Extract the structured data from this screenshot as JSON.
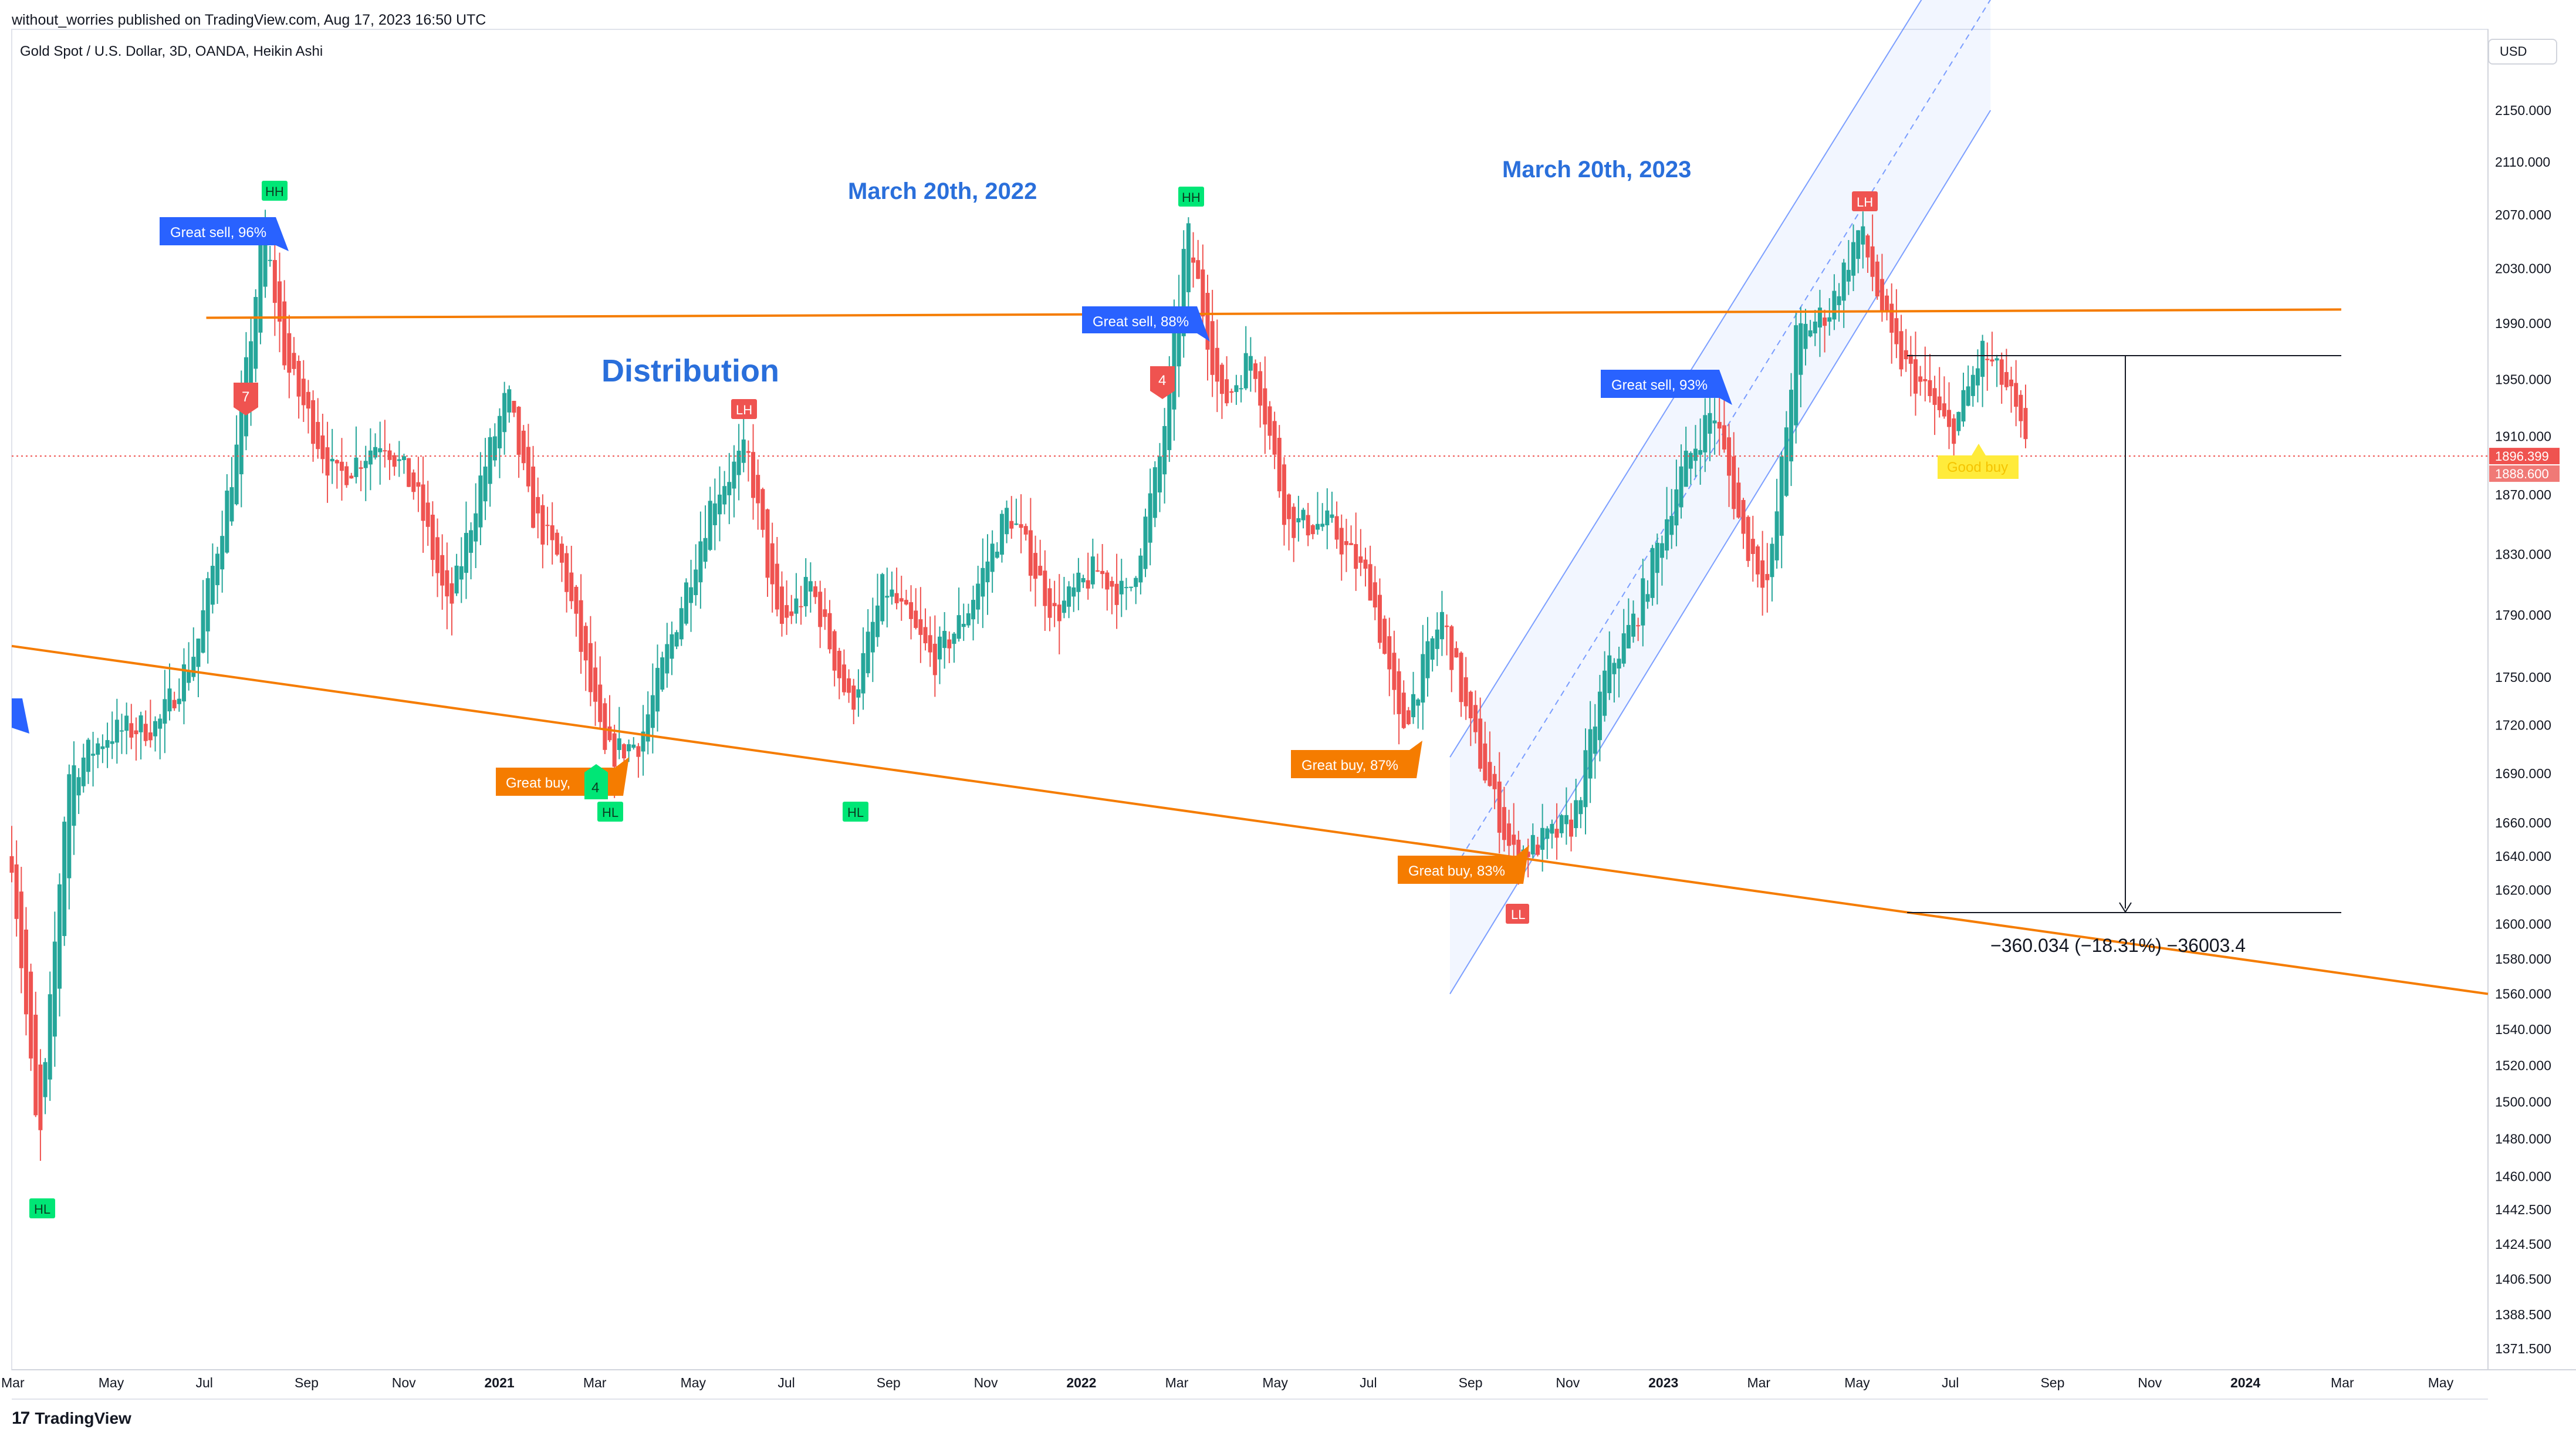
{
  "header": {
    "published": "without_worries published on TradingView.com, Aug 17, 2023 16:50 UTC",
    "symbol": "Gold Spot / U.S. Dollar, 3D, OANDA, Heikin Ashi"
  },
  "price_scale": {
    "currency": "USD",
    "ticks": [
      "2150.000",
      "2110.000",
      "2070.000",
      "2030.000",
      "1990.000",
      "1950.000",
      "1910.000",
      "1870.000",
      "1830.000",
      "1790.000",
      "1750.000",
      "1720.000",
      "1690.000",
      "1660.000",
      "1640.000",
      "1620.000",
      "1600.000",
      "1580.000",
      "1560.000",
      "1540.000",
      "1520.000",
      "1500.000",
      "1480.000",
      "1460.000",
      "1442.500",
      "1424.500",
      "1406.500",
      "1388.500",
      "1371.500"
    ],
    "last_price": "1896.399",
    "prev_price": "1888.600"
  },
  "time_axis": [
    "Mar",
    "May",
    "Jul",
    "Sep",
    "Nov",
    "2021",
    "Mar",
    "May",
    "Jul",
    "Sep",
    "Nov",
    "2022",
    "Mar",
    "May",
    "Jul",
    "Sep",
    "Nov",
    "2023",
    "Mar",
    "May",
    "Jul",
    "Sep",
    "Nov",
    "2024",
    "Mar",
    "May"
  ],
  "annotations": {
    "distribution": "Distribution",
    "march2022": "March 20th, 2022",
    "march2023": "March 20th, 2023",
    "measure": "−360.034 (−18.31%) −36003.4"
  },
  "signals": {
    "great_sell_96": "Great sell, 96%",
    "great_sell_88": "Great sell, 88%",
    "great_sell_93": "Great sell, 93%",
    "great_buy_a": "Great buy, ",
    "great_buy_87": "Great buy,  87%",
    "great_buy_83": "Great buy,  83%",
    "good_buy": "Good buy",
    "hh": "HH",
    "lh": "LH",
    "hl": "HL",
    "ll": "LL",
    "n7": "7",
    "n4": "4"
  },
  "footer": {
    "brand": "TradingView",
    "logo": "17"
  },
  "colors": {
    "bull": "#26a69a",
    "bear": "#ef5350",
    "orange": "#f57c00",
    "channel": "#2962ff",
    "sell_bg": "#2962ff",
    "buy_bg": "#f57c00",
    "good_buy_bg": "#ffeb3b",
    "hh_bg": "#00e676",
    "lh_bg": "#ef5350"
  },
  "chart_data": {
    "type": "candlestick",
    "title": "Gold Spot / U.S. Dollar, 3D, OANDA, Heikin Ashi",
    "ylim": [
      1360,
      2170
    ],
    "y_scale": "log",
    "x_range": [
      "2020-03",
      "2024-06"
    ],
    "close_path": [
      [
        "2020-03-01",
        1640
      ],
      [
        "2020-03-18",
        1470
      ],
      [
        "2020-04-05",
        1690
      ],
      [
        "2020-05-01",
        1715
      ],
      [
        "2020-06-01",
        1720
      ],
      [
        "2020-06-25",
        1770
      ],
      [
        "2020-07-20",
        1900
      ],
      [
        "2020-08-06",
        2060
      ],
      [
        "2020-08-20",
        1960
      ],
      [
        "2020-09-20",
        1880
      ],
      [
        "2020-10-20",
        1910
      ],
      [
        "2020-11-10",
        1870
      ],
      [
        "2020-11-30",
        1790
      ],
      [
        "2020-12-20",
        1880
      ],
      [
        "2021-01-06",
        1940
      ],
      [
        "2021-01-20",
        1860
      ],
      [
        "2021-02-10",
        1820
      ],
      [
        "2021-03-08",
        1700
      ],
      [
        "2021-03-30",
        1710
      ],
      [
        "2021-04-20",
        1780
      ],
      [
        "2021-05-15",
        1870
      ],
      [
        "2021-06-05",
        1900
      ],
      [
        "2021-06-25",
        1780
      ],
      [
        "2021-07-15",
        1810
      ],
      [
        "2021-08-09",
        1730
      ],
      [
        "2021-08-30",
        1810
      ],
      [
        "2021-09-30",
        1760
      ],
      [
        "2021-10-20",
        1790
      ],
      [
        "2021-11-16",
        1860
      ],
      [
        "2021-12-15",
        1790
      ],
      [
        "2022-01-10",
        1820
      ],
      [
        "2022-01-30",
        1800
      ],
      [
        "2022-02-20",
        1900
      ],
      [
        "2022-03-08",
        2060
      ],
      [
        "2022-03-30",
        1930
      ],
      [
        "2022-04-18",
        1970
      ],
      [
        "2022-05-10",
        1850
      ],
      [
        "2022-06-05",
        1850
      ],
      [
        "2022-07-01",
        1810
      ],
      [
        "2022-07-20",
        1715
      ],
      [
        "2022-08-15",
        1790
      ],
      [
        "2022-09-01",
        1720
      ],
      [
        "2022-09-28",
        1640
      ],
      [
        "2022-10-20",
        1650
      ],
      [
        "2022-11-05",
        1660
      ],
      [
        "2022-11-25",
        1750
      ],
      [
        "2022-12-15",
        1790
      ],
      [
        "2023-01-10",
        1880
      ],
      [
        "2023-02-01",
        1930
      ],
      [
        "2023-02-20",
        1840
      ],
      [
        "2023-03-08",
        1810
      ],
      [
        "2023-03-25",
        1980
      ],
      [
        "2023-04-15",
        2000
      ],
      [
        "2023-05-04",
        2060
      ],
      [
        "2023-05-25",
        1970
      ],
      [
        "2023-06-15",
        1940
      ],
      [
        "2023-06-30",
        1910
      ],
      [
        "2023-07-20",
        1970
      ],
      [
        "2023-08-06",
        1940
      ],
      [
        "2023-08-17",
        1896
      ]
    ],
    "lines": [
      {
        "name": "",
        "from": [
          "2020-07-01",
          1994
        ],
        "to": [
          "2024-03-01",
          2000
        ]
      },
      {
        "name": "",
        "from": [
          "2020-03-01",
          1770
        ],
        "to": [
          "2024-06-01",
          1560
        ]
      }
    ],
    "channel": {
      "from_date": "2022-08-20",
      "to_date": "2023-07-25",
      "lower_start": 1560,
      "lower_end": 2150,
      "upper_start": 1700,
      "upper_end": 2330
    },
    "measure": {
      "from": 1966.4,
      "to": 1606.4,
      "change": "−360.034 (−18.31%) −36003.4"
    },
    "last_price": 1896.399
  }
}
